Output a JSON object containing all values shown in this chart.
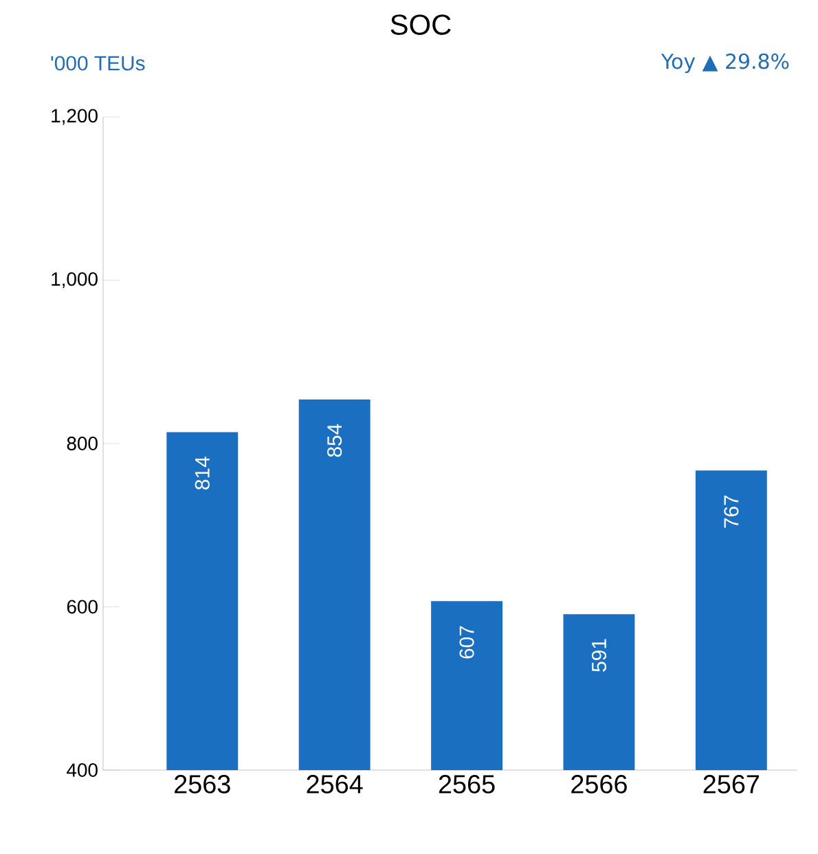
{
  "chart_data": {
    "type": "bar",
    "title": "SOC",
    "ylabel": "'000 TEUs",
    "annotations": [
      "Yoy ▲ 29.8%"
    ],
    "categories": [
      "2563",
      "2564",
      "2565",
      "2566",
      "2567"
    ],
    "values": [
      814,
      854,
      607,
      591,
      767
    ],
    "color": "#1a6fc0",
    "data_labels": true,
    "ylim": [
      400,
      1200
    ],
    "yticks": [
      400,
      600,
      800,
      {
        "value": 1000,
        "label": "1,000"
      },
      {
        "value": 1200,
        "label": "1,200"
      }
    ]
  }
}
